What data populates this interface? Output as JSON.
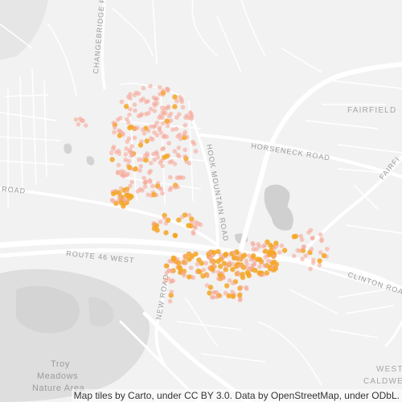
{
  "map": {
    "labels": {
      "changebridge": "CHANGEBRIDGE R",
      "horseneck": "HORSENECK ROAD",
      "hook_mountain": "HOOK MOUNTAIN ROAD",
      "route46": "ROUTE 46 WEST",
      "clinton": "CLINTON ROAD",
      "new_road": "NEW ROAD",
      "road_left": "ROAD",
      "fairfield": "FAIRFIELD",
      "fairfi": "FAIRFI",
      "west": "WEST",
      "caldwell": "CALDWEL",
      "troy1": "Troy",
      "troy2": "Meadows",
      "troy3": "Nature Area"
    },
    "attribution": "Map tiles by Carto, under CC BY 3.0. Data by OpenStreetMap, under ODbL.",
    "colors": {
      "background": "#f2f2f2",
      "road": "#ffffff",
      "water": "#d4d4d4",
      "park": "#dedede",
      "point_light": "#f7a99a",
      "point_dark": "#f5a623"
    }
  }
}
